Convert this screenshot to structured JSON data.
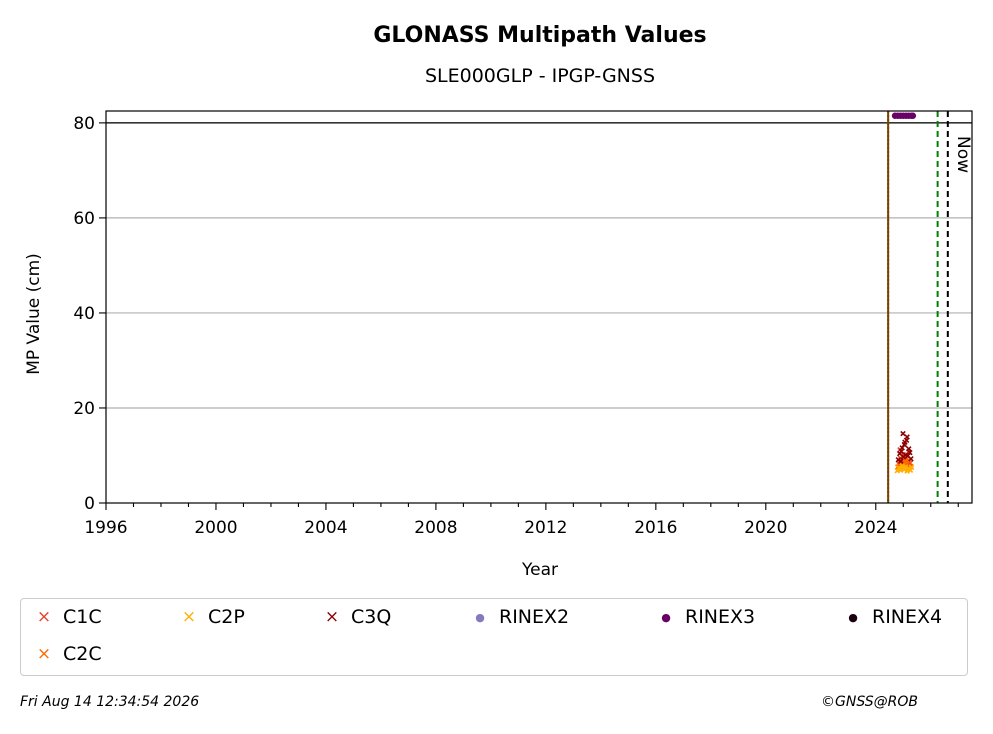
{
  "chart_data": {
    "type": "scatter",
    "title": "GLONASS Multipath Values",
    "subtitle": "SLE000GLP - IPGP-GNSS",
    "xlabel": "Year",
    "ylabel": "MP Value (cm)",
    "xlim": [
      1996,
      2027.5
    ],
    "ylim": [
      0,
      82.5
    ],
    "xticks": [
      1996,
      2000,
      2004,
      2008,
      2012,
      2016,
      2020,
      2024
    ],
    "yticks": [
      0,
      20,
      40,
      60,
      80
    ],
    "grid": "horizontal",
    "reference_line_y": 80,
    "now_label": "Now",
    "vertical_lines": [
      {
        "x": 2024.45,
        "color": "#008000",
        "style": "solid"
      },
      {
        "x": 2024.45,
        "color": "#ff0000",
        "style": "dotted"
      },
      {
        "x": 2026.25,
        "color": "#008000",
        "style": "dashed"
      },
      {
        "x": 2026.62,
        "color": "#000000",
        "style": "dashed"
      }
    ],
    "series": [
      {
        "name": "C1C",
        "marker": "x",
        "color": "#e8412b",
        "points": [
          [
            2024.85,
            8.1
          ],
          [
            2024.9,
            9.4
          ],
          [
            2024.95,
            7.6
          ],
          [
            2025.0,
            10.2
          ],
          [
            2025.05,
            8.8
          ],
          [
            2025.1,
            9.6
          ],
          [
            2025.15,
            7.9
          ],
          [
            2025.2,
            10.8
          ],
          [
            2025.25,
            8.4
          ],
          [
            2024.88,
            11.2
          ],
          [
            2025.02,
            9.1
          ],
          [
            2025.18,
            8.6
          ]
        ]
      },
      {
        "name": "C2C",
        "marker": "x",
        "color": "#ff6a00",
        "points": [
          [
            2024.8,
            7.6
          ],
          [
            2024.86,
            8.4
          ],
          [
            2024.92,
            7.1
          ],
          [
            2024.98,
            9.2
          ],
          [
            2025.04,
            7.9
          ],
          [
            2025.1,
            8.7
          ],
          [
            2025.16,
            7.3
          ],
          [
            2025.22,
            8.9
          ],
          [
            2025.28,
            7.7
          ],
          [
            2024.94,
            8.1
          ],
          [
            2025.08,
            9.5
          ],
          [
            2025.2,
            7.2
          ]
        ]
      },
      {
        "name": "C2P",
        "marker": "x",
        "color": "#ffb000",
        "points": [
          [
            2024.78,
            6.8
          ],
          [
            2024.84,
            7.4
          ],
          [
            2024.9,
            6.9
          ],
          [
            2024.96,
            7.8
          ],
          [
            2025.02,
            7.1
          ],
          [
            2025.08,
            7.6
          ],
          [
            2025.14,
            6.7
          ],
          [
            2025.2,
            7.3
          ],
          [
            2025.26,
            6.9
          ],
          [
            2025.3,
            7.5
          ]
        ]
      },
      {
        "name": "C3Q",
        "marker": "x",
        "color": "#8b0000",
        "points": [
          [
            2024.82,
            9.1
          ],
          [
            2024.87,
            10.4
          ],
          [
            2024.91,
            8.8
          ],
          [
            2024.96,
            11.6
          ],
          [
            2025.0,
            9.7
          ],
          [
            2025.04,
            12.3
          ],
          [
            2025.08,
            10.1
          ],
          [
            2025.12,
            13.2
          ],
          [
            2025.16,
            9.9
          ],
          [
            2025.2,
            11.4
          ],
          [
            2025.24,
            10.6
          ],
          [
            2025.28,
            9.3
          ],
          [
            2024.99,
            14.6
          ],
          [
            2025.14,
            13.9
          ],
          [
            2025.06,
            12.8
          ],
          [
            2024.93,
            10.9
          ]
        ]
      },
      {
        "name": "RINEX2",
        "marker": "dot",
        "color": "#8878c0",
        "points": []
      },
      {
        "name": "RINEX3",
        "marker": "dot",
        "color": "#6a0066",
        "points": [
          [
            2024.7,
            81.5
          ],
          [
            2024.8,
            81.5
          ],
          [
            2024.9,
            81.5
          ],
          [
            2025.0,
            81.5
          ],
          [
            2025.1,
            81.5
          ],
          [
            2025.2,
            81.5
          ],
          [
            2025.3,
            81.5
          ],
          [
            2025.35,
            81.5
          ]
        ]
      },
      {
        "name": "RINEX4",
        "marker": "dot",
        "color": "#1a0010",
        "points": []
      }
    ]
  },
  "legend": {
    "items": [
      {
        "label": "C1C",
        "glyph": "×",
        "color": "#e8412b"
      },
      {
        "label": "C2P",
        "glyph": "×",
        "color": "#ffb000"
      },
      {
        "label": "C3Q",
        "glyph": "×",
        "color": "#8b0000"
      },
      {
        "label": "RINEX2",
        "glyph": "●",
        "color": "#8878c0"
      },
      {
        "label": "RINEX3",
        "glyph": "●",
        "color": "#6a0066"
      },
      {
        "label": "RINEX4",
        "glyph": "●",
        "color": "#1a0010"
      },
      {
        "label": "C2C",
        "glyph": "×",
        "color": "#ff6a00"
      }
    ]
  },
  "footer": {
    "timestamp": "Fri Aug 14 12:34:54 2026",
    "copyright": "©GNSS@ROB"
  }
}
